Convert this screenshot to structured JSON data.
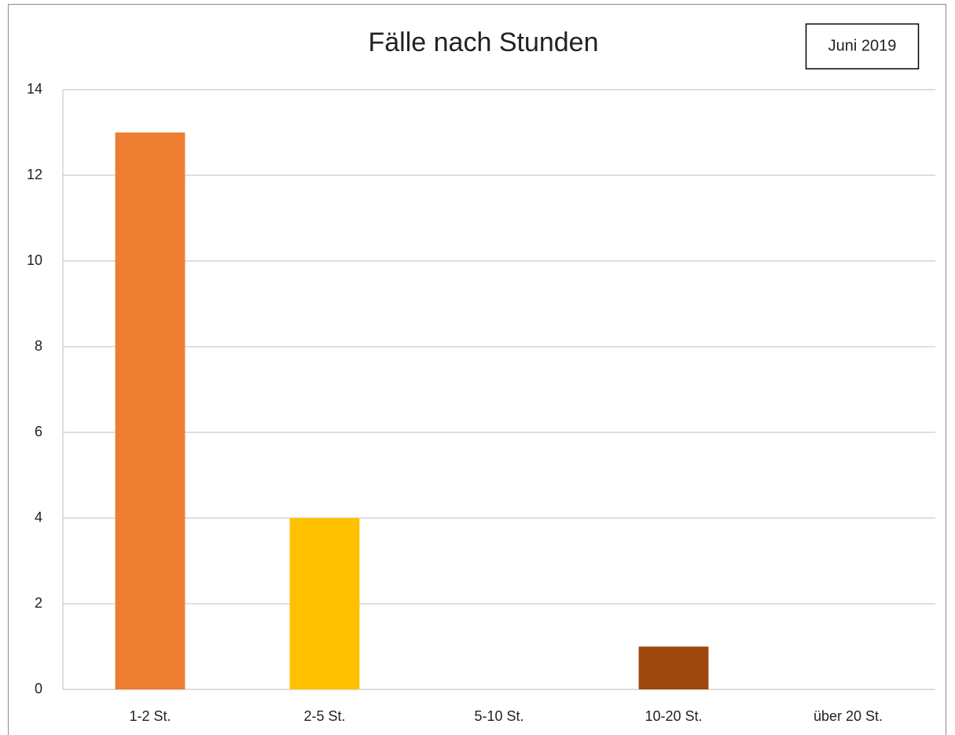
{
  "chart_data": {
    "type": "bar",
    "title": "Fälle nach Stunden",
    "annotation": "Juni 2019",
    "categories": [
      "1-2 St.",
      "2-5 St.",
      "5-10 St.",
      "10-20 St.",
      "über 20 St."
    ],
    "values": [
      13,
      4,
      0,
      1,
      0
    ],
    "colors": [
      "#ed7d31",
      "#ffc000",
      null,
      "#9e480e",
      null
    ],
    "ylim": [
      0,
      14
    ],
    "yticks": [
      0,
      2,
      4,
      6,
      8,
      10,
      12,
      14
    ],
    "grid": true
  }
}
